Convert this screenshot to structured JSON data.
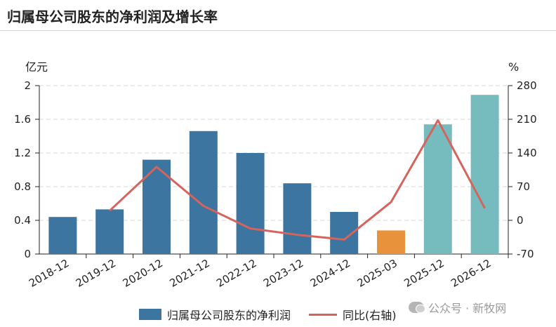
{
  "title": "归属母公司股东的净利润及增长率",
  "units": {
    "left": "亿元",
    "right": "%"
  },
  "legend": {
    "bar": "归属母公司股东的净利润",
    "line": "同比(右轴)"
  },
  "watermark": "公众号 · 新牧网",
  "colors": {
    "actual": "#3b75a0",
    "quarter": "#e8923c",
    "forecast": "#76bcbf",
    "line": "#d4645c",
    "grid": "#d9d9d9"
  },
  "chart_data": {
    "type": "bar",
    "categories": [
      "2018-12",
      "2019-12",
      "2020-12",
      "2021-12",
      "2022-12",
      "2023-12",
      "2024-12",
      "2025-03",
      "2025-12",
      "2026-12"
    ],
    "series": [
      {
        "name": "归属母公司股东的净利润",
        "axis": "left",
        "values": [
          0.44,
          0.53,
          1.12,
          1.46,
          1.2,
          0.84,
          0.5,
          0.28,
          1.54,
          1.89
        ],
        "bar_kind": [
          "actual",
          "actual",
          "actual",
          "actual",
          "actual",
          "actual",
          "actual",
          "quarter",
          "forecast",
          "forecast"
        ]
      },
      {
        "name": "同比(右轴)",
        "axis": "right",
        "type": "line",
        "values": [
          null,
          20,
          111,
          30,
          -17,
          -30,
          -40,
          38,
          208,
          25
        ]
      }
    ],
    "y_left": {
      "min": 0,
      "max": 2,
      "ticks": [
        "0",
        "0.4",
        "0.8",
        "1.2",
        "1.6",
        "2"
      ]
    },
    "y_right": {
      "min": -70,
      "max": 280,
      "ticks": [
        "-70",
        "0",
        "70",
        "140",
        "210",
        "280"
      ]
    },
    "grid": true,
    "legend_position": "bottom"
  }
}
